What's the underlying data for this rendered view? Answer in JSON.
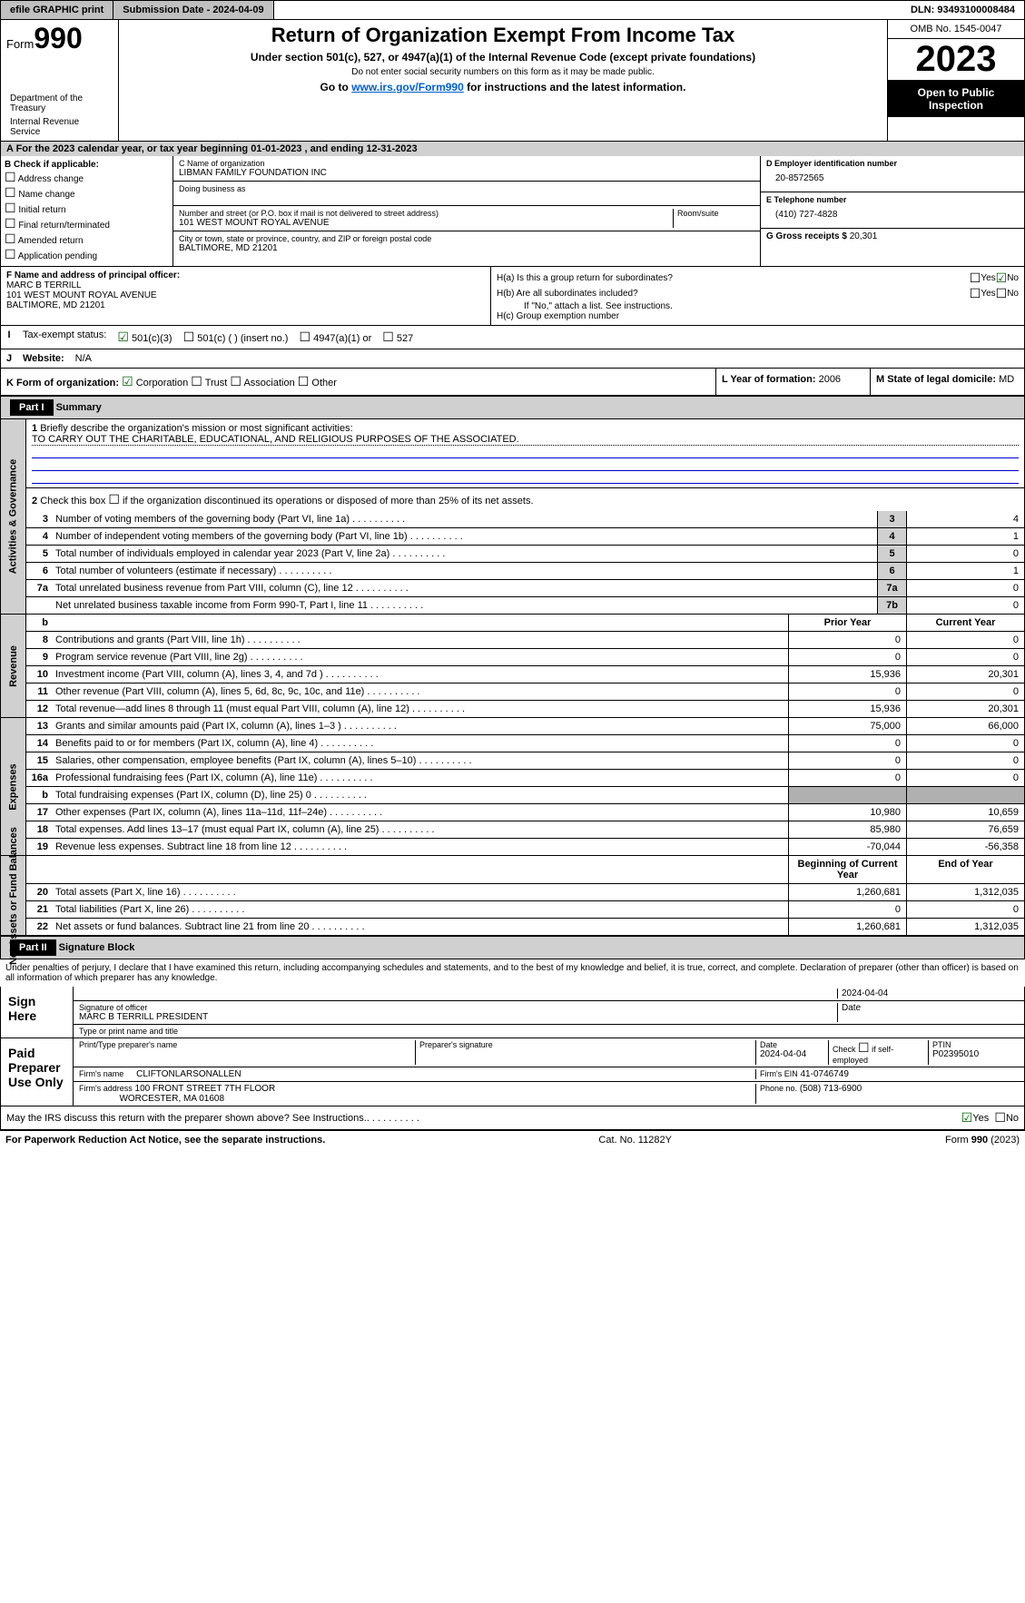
{
  "topbar": {
    "efile": "efile GRAPHIC print",
    "submission": "Submission Date - 2024-04-09",
    "dln": "DLN: 93493100008484"
  },
  "header": {
    "form_label": "Form",
    "form_num": "990",
    "title": "Return of Organization Exempt From Income Tax",
    "subtitle": "Under section 501(c), 527, or 4947(a)(1) of the Internal Revenue Code (except private foundations)",
    "warn": "Do not enter social security numbers on this form as it may be made public.",
    "goto_pre": "Go to ",
    "goto_link": "www.irs.gov/Form990",
    "goto_post": " for instructions and the latest information.",
    "dept": "Department of the Treasury",
    "irs": "Internal Revenue Service",
    "omb": "OMB No. 1545-0047",
    "year": "2023",
    "open": "Open to Public Inspection"
  },
  "rowA": "A For the 2023 calendar year, or tax year beginning 01-01-2023     , and ending 12-31-2023",
  "boxB": {
    "label": "B Check if applicable:",
    "items": [
      "Address change",
      "Name change",
      "Initial return",
      "Final return/terminated",
      "Amended return",
      "Application pending"
    ]
  },
  "boxC": {
    "name_lbl": "C Name of organization",
    "name": "LIBMAN FAMILY FOUNDATION INC",
    "dba_lbl": "Doing business as",
    "addr_lbl": "Number and street (or P.O. box if mail is not delivered to street address)",
    "addr": "101 WEST MOUNT ROYAL AVENUE",
    "room_lbl": "Room/suite",
    "city_lbl": "City or town, state or province, country, and ZIP or foreign postal code",
    "city": "BALTIMORE, MD  21201"
  },
  "boxD": {
    "lbl": "D Employer identification number",
    "val": "20-8572565"
  },
  "boxE": {
    "lbl": "E Telephone number",
    "val": "(410) 727-4828"
  },
  "boxG": {
    "lbl": "G Gross receipts $",
    "val": "20,301"
  },
  "boxF": {
    "lbl": "F  Name and address of principal officer:",
    "name": "MARC B TERRILL",
    "addr1": "101 WEST MOUNT ROYAL AVENUE",
    "addr2": "BALTIMORE, MD  21201"
  },
  "boxH": {
    "a": "H(a)  Is this a group return for subordinates?",
    "b": "H(b)  Are all subordinates included?",
    "b_note": "If \"No,\" attach a list. See instructions.",
    "c": "H(c)  Group exemption number",
    "yes": "Yes",
    "no": "No"
  },
  "rowI": {
    "lbl": "Tax-exempt status:",
    "o1": "501(c)(3)",
    "o2": "501(c) (  ) (insert no.)",
    "o3": "4947(a)(1) or",
    "o4": "527"
  },
  "rowJ": {
    "lbl": "Website:",
    "val": "N/A"
  },
  "rowK": {
    "lbl": "K Form of organization:",
    "o1": "Corporation",
    "o2": "Trust",
    "o3": "Association",
    "o4": "Other"
  },
  "rowL": {
    "lbl": "L Year of formation:",
    "val": "2006"
  },
  "rowM": {
    "lbl": "M State of legal domicile:",
    "val": "MD"
  },
  "part1": {
    "hdr": "Part I",
    "title": "Summary"
  },
  "governance": {
    "sidebar": "Activities & Governance",
    "l1_lbl": "Briefly describe the organization's mission or most significant activities:",
    "l1_val": "TO CARRY OUT THE CHARITABLE, EDUCATIONAL, AND RELIGIOUS PURPOSES OF THE ASSOCIATED.",
    "l2": "Check this box      if the organization discontinued its operations or disposed of more than 25% of its net assets.",
    "lines": [
      {
        "n": "3",
        "t": "Number of voting members of the governing body (Part VI, line 1a)",
        "b": "3",
        "v": "4"
      },
      {
        "n": "4",
        "t": "Number of independent voting members of the governing body (Part VI, line 1b)",
        "b": "4",
        "v": "1"
      },
      {
        "n": "5",
        "t": "Total number of individuals employed in calendar year 2023 (Part V, line 2a)",
        "b": "5",
        "v": "0"
      },
      {
        "n": "6",
        "t": "Total number of volunteers (estimate if necessary)",
        "b": "6",
        "v": "1"
      },
      {
        "n": "7a",
        "t": "Total unrelated business revenue from Part VIII, column (C), line 12",
        "b": "7a",
        "v": "0"
      },
      {
        "n": "",
        "t": "Net unrelated business taxable income from Form 990-T, Part I, line 11",
        "b": "7b",
        "v": "0"
      }
    ]
  },
  "revenue": {
    "sidebar": "Revenue",
    "hdr_b": "b",
    "hdr_prior": "Prior Year",
    "hdr_curr": "Current Year",
    "lines": [
      {
        "n": "8",
        "t": "Contributions and grants (Part VIII, line 1h)",
        "p": "0",
        "c": "0"
      },
      {
        "n": "9",
        "t": "Program service revenue (Part VIII, line 2g)",
        "p": "0",
        "c": "0"
      },
      {
        "n": "10",
        "t": "Investment income (Part VIII, column (A), lines 3, 4, and 7d )",
        "p": "15,936",
        "c": "20,301"
      },
      {
        "n": "11",
        "t": "Other revenue (Part VIII, column (A), lines 5, 6d, 8c, 9c, 10c, and 11e)",
        "p": "0",
        "c": "0"
      },
      {
        "n": "12",
        "t": "Total revenue—add lines 8 through 11 (must equal Part VIII, column (A), line 12)",
        "p": "15,936",
        "c": "20,301"
      }
    ]
  },
  "expenses": {
    "sidebar": "Expenses",
    "lines": [
      {
        "n": "13",
        "t": "Grants and similar amounts paid (Part IX, column (A), lines 1–3 )",
        "p": "75,000",
        "c": "66,000"
      },
      {
        "n": "14",
        "t": "Benefits paid to or for members (Part IX, column (A), line 4)",
        "p": "0",
        "c": "0"
      },
      {
        "n": "15",
        "t": "Salaries, other compensation, employee benefits (Part IX, column (A), lines 5–10)",
        "p": "0",
        "c": "0"
      },
      {
        "n": "16a",
        "t": "Professional fundraising fees (Part IX, column (A), line 11e)",
        "p": "0",
        "c": "0"
      },
      {
        "n": "b",
        "t": "Total fundraising expenses (Part IX, column (D), line 25) 0",
        "p": "",
        "c": "",
        "gray": true
      },
      {
        "n": "17",
        "t": "Other expenses (Part IX, column (A), lines 11a–11d, 11f–24e)",
        "p": "10,980",
        "c": "10,659"
      },
      {
        "n": "18",
        "t": "Total expenses. Add lines 13–17 (must equal Part IX, column (A), line 25)",
        "p": "85,980",
        "c": "76,659"
      },
      {
        "n": "19",
        "t": "Revenue less expenses. Subtract line 18 from line 12",
        "p": "-70,044",
        "c": "-56,358"
      }
    ]
  },
  "netassets": {
    "sidebar": "Net Assets or Fund Balances",
    "hdr_begin": "Beginning of Current Year",
    "hdr_end": "End of Year",
    "lines": [
      {
        "n": "20",
        "t": "Total assets (Part X, line 16)",
        "p": "1,260,681",
        "c": "1,312,035"
      },
      {
        "n": "21",
        "t": "Total liabilities (Part X, line 26)",
        "p": "0",
        "c": "0"
      },
      {
        "n": "22",
        "t": "Net assets or fund balances. Subtract line 21 from line 20",
        "p": "1,260,681",
        "c": "1,312,035"
      }
    ]
  },
  "part2": {
    "hdr": "Part II",
    "title": "Signature Block"
  },
  "sig": {
    "penalty": "Under penalties of perjury, I declare that I have examined this return, including accompanying schedules and statements, and to the best of my knowledge and belief, it is true, correct, and complete. Declaration of preparer (other than officer) is based on all information of which preparer has any knowledge.",
    "sign_here": "Sign Here",
    "sig_officer": "Signature of officer",
    "officer": "MARC B TERRILL PRESIDENT",
    "type_name": "Type or print name and title",
    "date_lbl": "Date",
    "date1": "2024-04-04",
    "paid": "Paid Preparer Use Only",
    "prep_name_lbl": "Print/Type preparer's name",
    "prep_sig_lbl": "Preparer's signature",
    "date2": "2024-04-04",
    "check_self": "Check       if self-employed",
    "ptin_lbl": "PTIN",
    "ptin": "P02395010",
    "firm_name_lbl": "Firm's name",
    "firm_name": "CLIFTONLARSONALLEN",
    "firm_ein_lbl": "Firm's EIN",
    "firm_ein": "41-0746749",
    "firm_addr_lbl": "Firm's address",
    "firm_addr1": "100 FRONT STREET 7TH FLOOR",
    "firm_addr2": "WORCESTER, MA  01608",
    "phone_lbl": "Phone no.",
    "phone": "(508) 713-6900",
    "discuss": "May the IRS discuss this return with the preparer shown above? See Instructions.",
    "yes": "Yes",
    "no": "No"
  },
  "footer": {
    "left": "For Paperwork Reduction Act Notice, see the separate instructions.",
    "mid": "Cat. No. 11282Y",
    "right": "Form 990 (2023)"
  }
}
